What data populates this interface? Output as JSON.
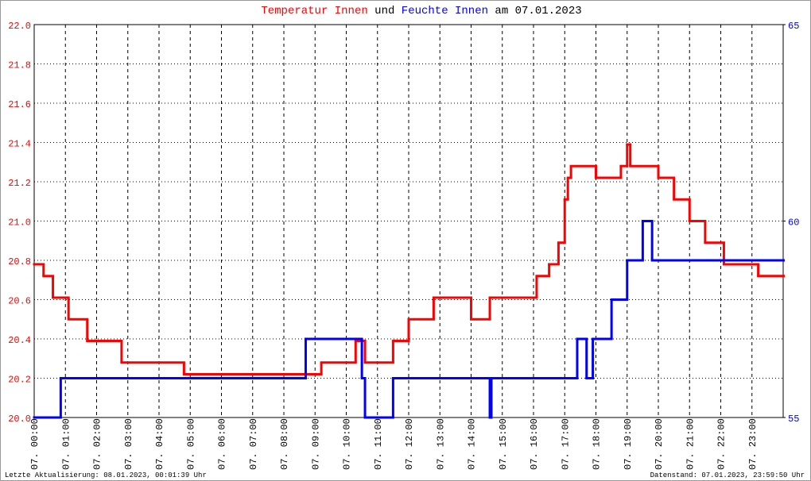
{
  "chart_data": {
    "type": "line",
    "step": true,
    "title_parts": [
      {
        "text": "Temperatur Innen",
        "color": "#ff0000"
      },
      {
        "text": "und",
        "color": "#000000"
      },
      {
        "text": "Feuchte Innen",
        "color": "#0000ff"
      },
      {
        "text": "am 07.01.2023",
        "color": "#000000"
      }
    ],
    "footer_left": "Letzte Aktualisierung: 08.01.2023, 00:01:39 Uhr",
    "footer_right": "Datenstand: 07.01.2023, 23:59:50 Uhr",
    "xlim": [
      0,
      24
    ],
    "xticks": [
      {
        "value": 0,
        "label": "07. 00:00"
      },
      {
        "value": 1,
        "label": "07. 01:00"
      },
      {
        "value": 2,
        "label": "07. 02:00"
      },
      {
        "value": 3,
        "label": "07. 03:00"
      },
      {
        "value": 4,
        "label": "07. 04:00"
      },
      {
        "value": 5,
        "label": "07. 05:00"
      },
      {
        "value": 6,
        "label": "07. 06:00"
      },
      {
        "value": 7,
        "label": "07. 07:00"
      },
      {
        "value": 8,
        "label": "07. 08:00"
      },
      {
        "value": 9,
        "label": "07. 09:00"
      },
      {
        "value": 10,
        "label": "07. 10:00"
      },
      {
        "value": 11,
        "label": "07. 11:00"
      },
      {
        "value": 12,
        "label": "07. 12:00"
      },
      {
        "value": 13,
        "label": "07. 13:00"
      },
      {
        "value": 14,
        "label": "07. 14:00"
      },
      {
        "value": 15,
        "label": "07. 15:00"
      },
      {
        "value": 16,
        "label": "07. 16:00"
      },
      {
        "value": 17,
        "label": "07. 17:00"
      },
      {
        "value": 18,
        "label": "07. 18:00"
      },
      {
        "value": 19,
        "label": "07. 19:00"
      },
      {
        "value": 20,
        "label": "07. 20:00"
      },
      {
        "value": 21,
        "label": "07. 21:00"
      },
      {
        "value": 22,
        "label": "07. 22:00"
      },
      {
        "value": 23,
        "label": "07. 23:00"
      }
    ],
    "ylim": [
      20,
      22
    ],
    "yticks": [
      {
        "value": 20,
        "label": "20.0"
      },
      {
        "value": 20.2,
        "label": "20.2"
      },
      {
        "value": 20.4,
        "label": "20.4"
      },
      {
        "value": 20.6,
        "label": "20.6"
      },
      {
        "value": 20.8,
        "label": "20.8"
      },
      {
        "value": 21,
        "label": "21.0"
      },
      {
        "value": 21.2,
        "label": "21.2"
      },
      {
        "value": 21.4,
        "label": "21.4"
      },
      {
        "value": 21.6,
        "label": "21.6"
      },
      {
        "value": 21.8,
        "label": "21.8"
      },
      {
        "value": 22,
        "label": "22.0"
      }
    ],
    "y2lim": [
      55,
      65
    ],
    "y2ticks": [
      55,
      60,
      65
    ],
    "grid": true,
    "series": [
      {
        "name": "Temperatur Innen",
        "color": "#ff0000",
        "axis": "y",
        "x": [
          0,
          0.3,
          0.6,
          1.1,
          1.7,
          2.8,
          4.8,
          9.0,
          9.2,
          10.3,
          10.6,
          11.5,
          12.0,
          12.8,
          14.0,
          14.6,
          16.1,
          16.5,
          16.8,
          17.0,
          17.1,
          17.2,
          18.0,
          18.8,
          19.0,
          19.1,
          20.0,
          20.5,
          21.0,
          21.5,
          22.1,
          23.2,
          24
        ],
        "values": [
          20.78,
          20.72,
          20.61,
          20.5,
          20.39,
          20.28,
          20.22,
          20.22,
          20.28,
          20.39,
          20.28,
          20.39,
          20.5,
          20.61,
          20.5,
          20.61,
          20.72,
          20.78,
          20.89,
          21.11,
          21.22,
          21.28,
          21.22,
          21.28,
          21.39,
          21.28,
          21.22,
          21.11,
          21.0,
          20.89,
          20.78,
          20.72,
          20.72
        ]
      },
      {
        "name": "Feuchte Innen",
        "color": "#0000ff",
        "axis": "y2",
        "x": [
          0,
          0.85,
          8.7,
          10.5,
          10.6,
          11.5,
          14.6,
          14.65,
          17.4,
          17.7,
          17.9,
          18.5,
          19.0,
          19.5,
          19.8,
          24
        ],
        "values": [
          55,
          56,
          57,
          56,
          55,
          56,
          55,
          56,
          57,
          56,
          57,
          58,
          59,
          60,
          59,
          59
        ]
      }
    ]
  }
}
